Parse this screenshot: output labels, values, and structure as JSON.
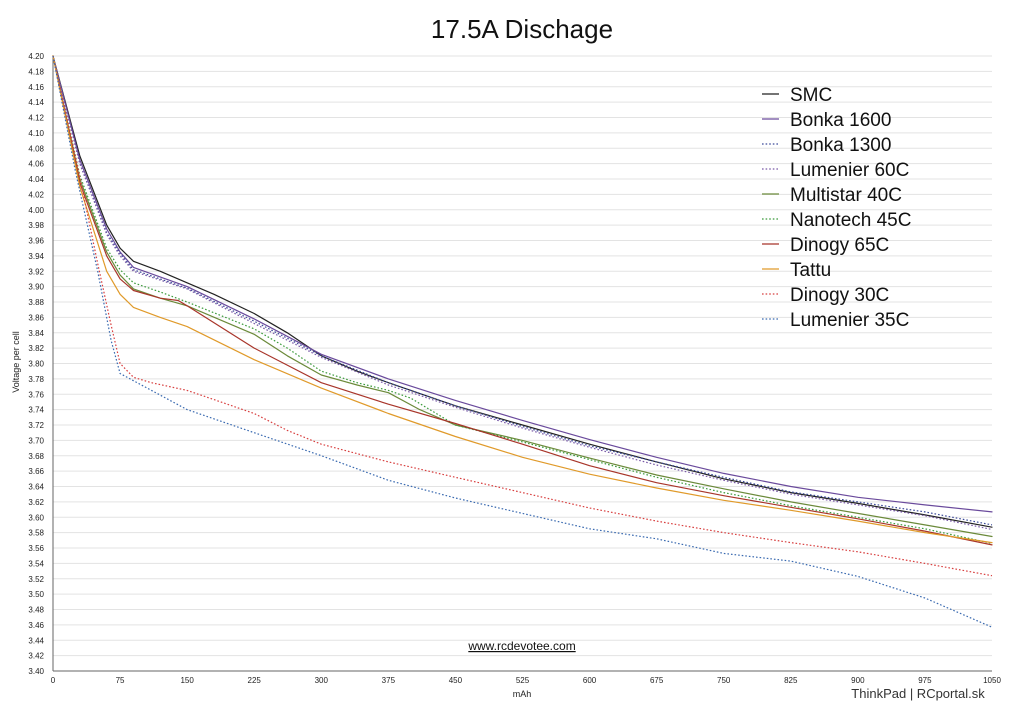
{
  "chart_data": {
    "type": "line",
    "title": "17.5A Dischage",
    "xlabel": "mAh",
    "ylabel": "Voltage per cell",
    "xlim": [
      0,
      1050
    ],
    "ylim": [
      3.4,
      4.2
    ],
    "xticks": [
      0,
      75,
      150,
      225,
      300,
      375,
      450,
      525,
      600,
      675,
      750,
      825,
      900,
      975,
      1050
    ],
    "ystep": 0.02,
    "grid": "horizontal",
    "legend_position": "top-right",
    "watermark": "www.rcdevotee.com",
    "series": [
      {
        "name": "SMC",
        "color": "#222222",
        "dash": "solid",
        "points": [
          [
            0,
            4.2
          ],
          [
            30,
            4.07
          ],
          [
            60,
            3.98
          ],
          [
            75,
            3.95
          ],
          [
            90,
            3.933
          ],
          [
            120,
            3.92
          ],
          [
            150,
            3.905
          ],
          [
            180,
            3.89
          ],
          [
            225,
            3.865
          ],
          [
            262,
            3.84
          ],
          [
            300,
            3.81
          ],
          [
            340,
            3.79
          ],
          [
            375,
            3.775
          ],
          [
            450,
            3.745
          ],
          [
            525,
            3.72
          ],
          [
            600,
            3.695
          ],
          [
            675,
            3.672
          ],
          [
            750,
            3.65
          ],
          [
            825,
            3.632
          ],
          [
            900,
            3.618
          ],
          [
            975,
            3.603
          ],
          [
            1050,
            3.587
          ]
        ]
      },
      {
        "name": "Bonka 1600",
        "color": "#6a4a9c",
        "dash": "solid",
        "points": [
          [
            0,
            4.2
          ],
          [
            30,
            4.065
          ],
          [
            60,
            3.975
          ],
          [
            75,
            3.945
          ],
          [
            90,
            3.925
          ],
          [
            150,
            3.9
          ],
          [
            225,
            3.858
          ],
          [
            300,
            3.812
          ],
          [
            375,
            3.78
          ],
          [
            450,
            3.752
          ],
          [
            525,
            3.726
          ],
          [
            600,
            3.701
          ],
          [
            675,
            3.678
          ],
          [
            750,
            3.657
          ],
          [
            825,
            3.64
          ],
          [
            900,
            3.626
          ],
          [
            975,
            3.616
          ],
          [
            1050,
            3.607
          ]
        ]
      },
      {
        "name": "Bonka 1300",
        "color": "#3c4a9a",
        "dash": "dotted",
        "points": [
          [
            0,
            4.2
          ],
          [
            30,
            4.06
          ],
          [
            60,
            3.97
          ],
          [
            75,
            3.943
          ],
          [
            90,
            3.922
          ],
          [
            150,
            3.898
          ],
          [
            225,
            3.855
          ],
          [
            300,
            3.81
          ],
          [
            375,
            3.775
          ],
          [
            450,
            3.745
          ],
          [
            525,
            3.718
          ],
          [
            600,
            3.693
          ],
          [
            675,
            3.672
          ],
          [
            750,
            3.652
          ],
          [
            825,
            3.633
          ],
          [
            900,
            3.62
          ],
          [
            975,
            3.607
          ],
          [
            1050,
            3.59
          ]
        ]
      },
      {
        "name": "Lumenier 60C",
        "color": "#7a5aa8",
        "dash": "dotted",
        "points": [
          [
            0,
            4.2
          ],
          [
            30,
            4.06
          ],
          [
            60,
            3.968
          ],
          [
            75,
            3.94
          ],
          [
            90,
            3.92
          ],
          [
            150,
            3.897
          ],
          [
            225,
            3.852
          ],
          [
            300,
            3.808
          ],
          [
            375,
            3.772
          ],
          [
            450,
            3.743
          ],
          [
            525,
            3.716
          ],
          [
            600,
            3.691
          ],
          [
            675,
            3.668
          ],
          [
            750,
            3.648
          ],
          [
            825,
            3.63
          ],
          [
            900,
            3.616
          ],
          [
            975,
            3.602
          ],
          [
            1050,
            3.584
          ]
        ]
      },
      {
        "name": "Multistar 40C",
        "color": "#6b8a3a",
        "dash": "solid",
        "points": [
          [
            0,
            4.2
          ],
          [
            30,
            4.04
          ],
          [
            60,
            3.945
          ],
          [
            75,
            3.915
          ],
          [
            90,
            3.897
          ],
          [
            120,
            3.885
          ],
          [
            150,
            3.875
          ],
          [
            225,
            3.838
          ],
          [
            262,
            3.81
          ],
          [
            300,
            3.785
          ],
          [
            340,
            3.772
          ],
          [
            375,
            3.762
          ],
          [
            410,
            3.74
          ],
          [
            450,
            3.72
          ],
          [
            525,
            3.7
          ],
          [
            600,
            3.677
          ],
          [
            675,
            3.655
          ],
          [
            750,
            3.637
          ],
          [
            825,
            3.62
          ],
          [
            900,
            3.605
          ],
          [
            975,
            3.59
          ],
          [
            1050,
            3.575
          ]
        ]
      },
      {
        "name": "Nanotech 45C",
        "color": "#3a9a3a",
        "dash": "dotted",
        "points": [
          [
            0,
            4.2
          ],
          [
            30,
            4.045
          ],
          [
            60,
            3.95
          ],
          [
            75,
            3.922
          ],
          [
            90,
            3.905
          ],
          [
            120,
            3.893
          ],
          [
            150,
            3.88
          ],
          [
            225,
            3.845
          ],
          [
            262,
            3.82
          ],
          [
            300,
            3.79
          ],
          [
            340,
            3.775
          ],
          [
            375,
            3.765
          ],
          [
            400,
            3.755
          ],
          [
            450,
            3.72
          ],
          [
            525,
            3.698
          ],
          [
            600,
            3.675
          ],
          [
            675,
            3.652
          ],
          [
            750,
            3.632
          ],
          [
            825,
            3.615
          ],
          [
            900,
            3.6
          ],
          [
            975,
            3.585
          ],
          [
            1050,
            3.566
          ]
        ]
      },
      {
        "name": "Dinogy 65C",
        "color": "#a8352a",
        "dash": "solid",
        "points": [
          [
            0,
            4.2
          ],
          [
            30,
            4.035
          ],
          [
            60,
            3.94
          ],
          [
            75,
            3.91
          ],
          [
            90,
            3.895
          ],
          [
            120,
            3.885
          ],
          [
            140,
            3.882
          ],
          [
            150,
            3.875
          ],
          [
            225,
            3.82
          ],
          [
            300,
            3.775
          ],
          [
            375,
            3.747
          ],
          [
            450,
            3.722
          ],
          [
            525,
            3.695
          ],
          [
            600,
            3.667
          ],
          [
            675,
            3.645
          ],
          [
            750,
            3.628
          ],
          [
            825,
            3.613
          ],
          [
            900,
            3.598
          ],
          [
            975,
            3.582
          ],
          [
            1050,
            3.564
          ]
        ]
      },
      {
        "name": "Tattu",
        "color": "#e09a2a",
        "dash": "solid",
        "points": [
          [
            0,
            4.2
          ],
          [
            30,
            4.03
          ],
          [
            60,
            3.92
          ],
          [
            75,
            3.89
          ],
          [
            90,
            3.873
          ],
          [
            120,
            3.86
          ],
          [
            150,
            3.848
          ],
          [
            225,
            3.805
          ],
          [
            300,
            3.768
          ],
          [
            375,
            3.735
          ],
          [
            450,
            3.705
          ],
          [
            525,
            3.678
          ],
          [
            600,
            3.656
          ],
          [
            675,
            3.638
          ],
          [
            750,
            3.622
          ],
          [
            825,
            3.609
          ],
          [
            900,
            3.595
          ],
          [
            975,
            3.58
          ],
          [
            1050,
            3.567
          ]
        ]
      },
      {
        "name": "Dinogy 30C",
        "color": "#d84040",
        "dash": "dotted",
        "points": [
          [
            0,
            4.2
          ],
          [
            25,
            4.07
          ],
          [
            50,
            3.93
          ],
          [
            65,
            3.85
          ],
          [
            75,
            3.8
          ],
          [
            90,
            3.782
          ],
          [
            110,
            3.775
          ],
          [
            150,
            3.765
          ],
          [
            180,
            3.753
          ],
          [
            225,
            3.735
          ],
          [
            262,
            3.713
          ],
          [
            300,
            3.695
          ],
          [
            375,
            3.672
          ],
          [
            450,
            3.652
          ],
          [
            525,
            3.632
          ],
          [
            600,
            3.612
          ],
          [
            675,
            3.595
          ],
          [
            750,
            3.58
          ],
          [
            825,
            3.567
          ],
          [
            900,
            3.555
          ],
          [
            975,
            3.54
          ],
          [
            1050,
            3.524
          ]
        ]
      },
      {
        "name": "Lumenier 35C",
        "color": "#3a6ab0",
        "dash": "dotted",
        "points": [
          [
            0,
            4.2
          ],
          [
            25,
            4.05
          ],
          [
            50,
            3.92
          ],
          [
            65,
            3.83
          ],
          [
            75,
            3.787
          ],
          [
            150,
            3.74
          ],
          [
            225,
            3.71
          ],
          [
            300,
            3.68
          ],
          [
            375,
            3.648
          ],
          [
            450,
            3.625
          ],
          [
            525,
            3.605
          ],
          [
            600,
            3.585
          ],
          [
            675,
            3.572
          ],
          [
            750,
            3.553
          ],
          [
            825,
            3.543
          ],
          [
            900,
            3.523
          ],
          [
            975,
            3.495
          ],
          [
            1050,
            3.457
          ]
        ]
      }
    ]
  },
  "credit": "ThinkPad | RCportal.sk"
}
